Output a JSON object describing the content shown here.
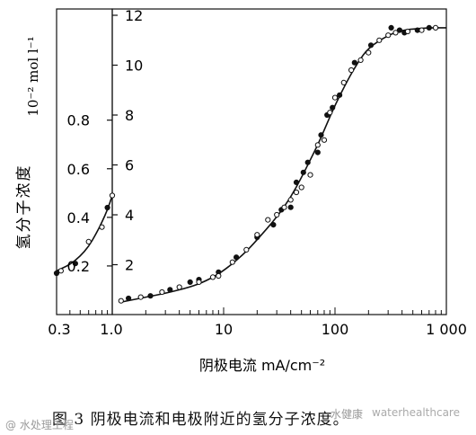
{
  "chart_data": [
    {
      "type": "scatter",
      "panel": "left",
      "xscale": "log",
      "xlim": [
        0.3,
        1.0
      ],
      "xticks": [
        0.3,
        0.4,
        0.5,
        0.6,
        0.7,
        0.8,
        0.9,
        1.0
      ],
      "xticklabels": [
        "0.3",
        "1.0"
      ],
      "ylim": [
        0,
        1.05
      ],
      "yticks": [
        0.2,
        0.4,
        0.6,
        0.8
      ],
      "yticklabels": [
        "0.2",
        "0.4",
        "0.6",
        "0.8"
      ],
      "ylabel": "氢分子浓度",
      "yunit": "10⁻² mol l⁻¹",
      "curve": {
        "x": [
          0.3,
          0.4,
          0.5,
          0.6,
          0.7,
          0.8,
          0.9,
          1.0
        ],
        "y": [
          0.18,
          0.205,
          0.24,
          0.28,
          0.33,
          0.38,
          0.43,
          0.49
        ]
      },
      "series": [
        {
          "marker": "filled",
          "x": [
            0.3,
            0.45,
            0.9
          ],
          "y": [
            0.17,
            0.21,
            0.44
          ]
        },
        {
          "marker": "open",
          "x": [
            0.33,
            0.6,
            0.8,
            1.0
          ],
          "y": [
            0.18,
            0.3,
            0.36,
            0.49
          ]
        }
      ]
    },
    {
      "type": "scatter",
      "panel": "right",
      "xscale": "log",
      "xlim": [
        1.0,
        1000
      ],
      "xticks": [
        10,
        100,
        1000
      ],
      "xticklabels": [
        "10",
        "100",
        "1 000"
      ],
      "ylim": [
        0,
        12
      ],
      "yticks": [
        2,
        4,
        6,
        8,
        10,
        12
      ],
      "yticklabels": [
        "2",
        "4",
        "6",
        "8",
        "10",
        "12"
      ],
      "xlabel": "阴极电流 mA/cm⁻²",
      "curve": {
        "x": [
          1.2,
          2,
          3,
          5,
          7,
          10,
          15,
          20,
          30,
          40,
          50,
          60,
          70,
          80,
          100,
          130,
          160,
          200,
          300,
          400,
          500,
          700,
          1000
        ],
        "y": [
          0.5,
          0.7,
          0.85,
          1.1,
          1.35,
          1.75,
          2.4,
          3.0,
          3.9,
          4.7,
          5.5,
          6.2,
          6.8,
          7.4,
          8.4,
          9.4,
          10.1,
          10.7,
          11.2,
          11.4,
          11.45,
          11.5,
          11.5
        ]
      },
      "series": [
        {
          "marker": "filled",
          "x": [
            1.4,
            2.2,
            3.3,
            5,
            6,
            9,
            13,
            20,
            28,
            33,
            40,
            45,
            52,
            57,
            70,
            75,
            85,
            95,
            110,
            150,
            210,
            320,
            380,
            420,
            550,
            700
          ],
          "y": [
            0.65,
            0.75,
            1.0,
            1.3,
            1.4,
            1.7,
            2.3,
            3.1,
            3.6,
            4.2,
            4.3,
            5.3,
            5.7,
            6.1,
            6.5,
            7.2,
            8.0,
            8.3,
            8.8,
            10.1,
            10.8,
            11.5,
            11.4,
            11.3,
            11.4,
            11.5
          ]
        },
        {
          "marker": "open",
          "x": [
            1.2,
            1.8,
            2.8,
            4,
            6,
            8,
            9,
            12,
            16,
            20,
            25,
            30,
            35,
            40,
            45,
            50,
            60,
            70,
            80,
            90,
            100,
            120,
            140,
            170,
            200,
            250,
            300,
            350,
            450,
            600,
            800
          ],
          "y": [
            0.55,
            0.7,
            0.9,
            1.1,
            1.3,
            1.5,
            1.55,
            2.1,
            2.6,
            3.2,
            3.8,
            4.0,
            4.3,
            4.6,
            4.9,
            5.1,
            5.6,
            6.8,
            7.0,
            8.1,
            8.7,
            9.3,
            9.8,
            10.2,
            10.5,
            11.0,
            11.2,
            11.3,
            11.35,
            11.4,
            11.5
          ]
        }
      ]
    }
  ],
  "caption": "图 3   阴极电流和电极附近的氢分子浓度。",
  "watermarks": [
    "@ 水处理工程",
    "水健康",
    "waterhealthcare"
  ]
}
